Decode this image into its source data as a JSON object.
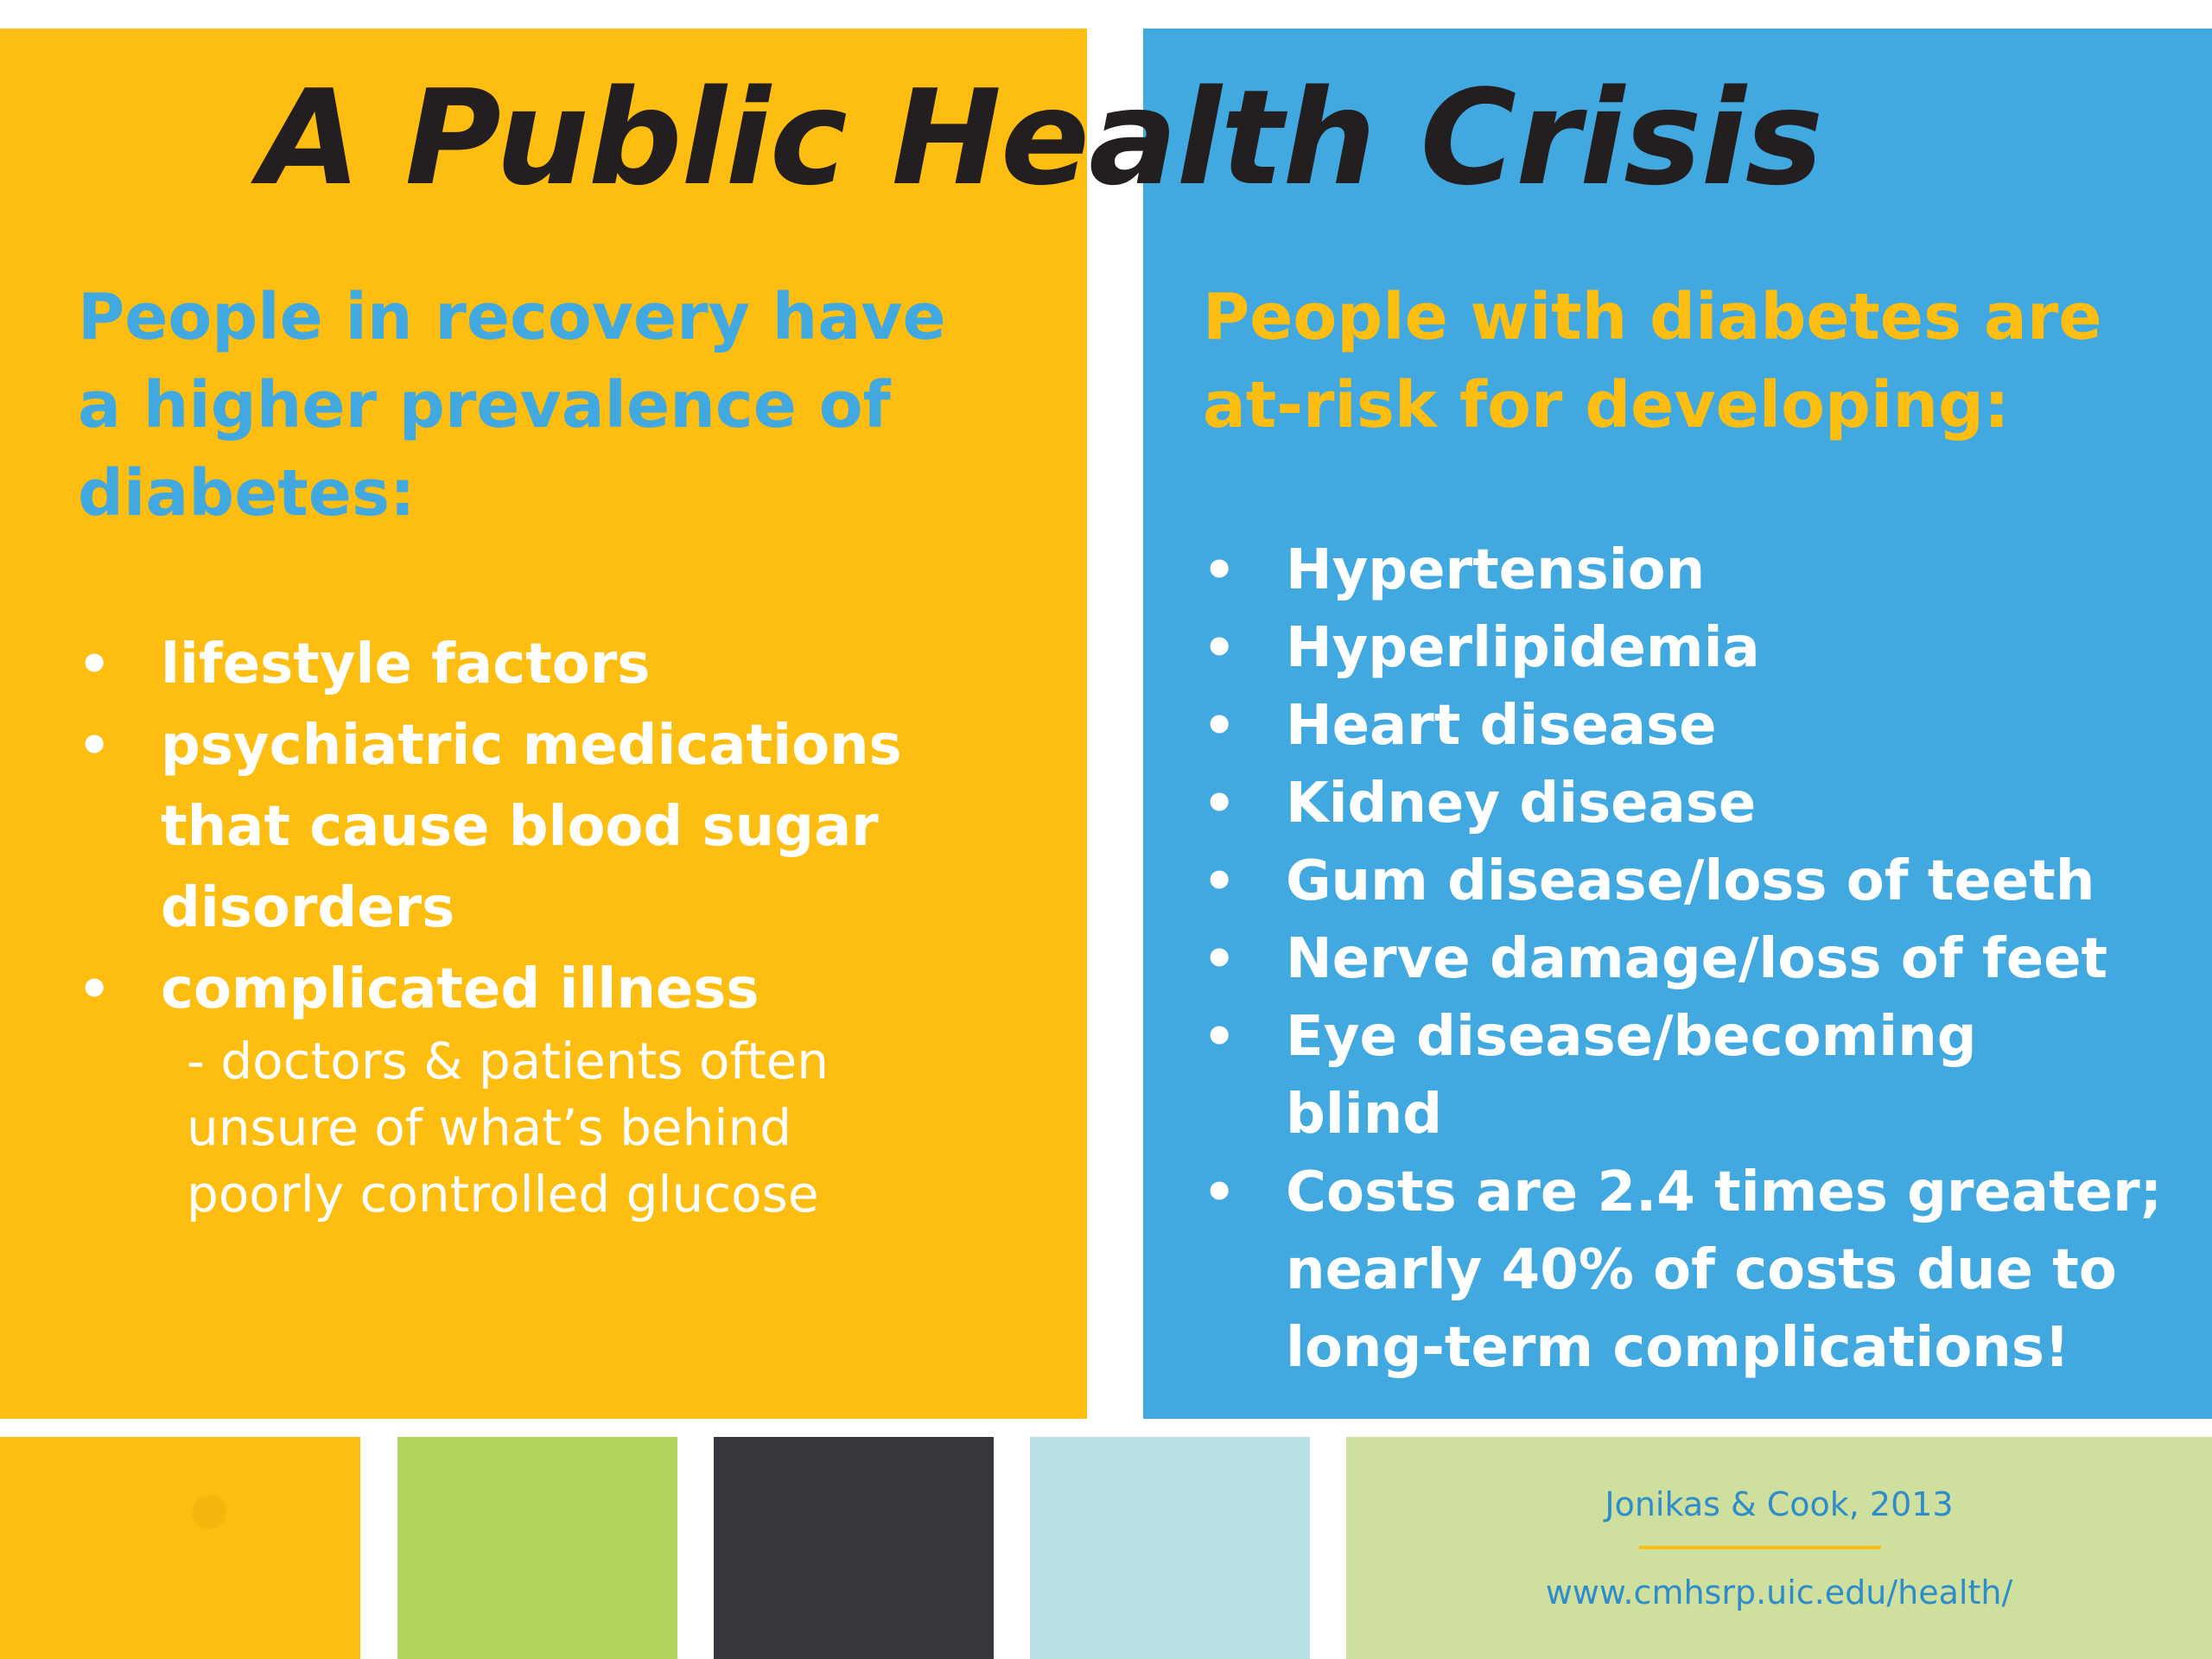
{
  "slide": {
    "title": "A Public Health Crisis",
    "left_panel": {
      "heading_lines": [
        "People in recovery have",
        "a higher prevalence of",
        "diabetes:"
      ],
      "bullets": [
        {
          "lines": [
            "lifestyle factors"
          ]
        },
        {
          "lines": [
            "psychiatric medications",
            "that cause blood sugar",
            "disorders"
          ]
        },
        {
          "lines": [
            "complicated illness"
          ]
        }
      ],
      "subnote_lines": [
        "- doctors & patients often",
        "unsure of what’s behind",
        "poorly controlled glucose"
      ]
    },
    "right_panel": {
      "heading_lines": [
        "People with diabetes are",
        "at-risk for developing:"
      ],
      "bullets": [
        {
          "lines": [
            "Hypertension"
          ]
        },
        {
          "lines": [
            "Hyperlipidemia"
          ]
        },
        {
          "lines": [
            "Heart disease"
          ]
        },
        {
          "lines": [
            "Kidney disease"
          ]
        },
        {
          "lines": [
            "Gum disease/loss of teeth"
          ]
        },
        {
          "lines": [
            "Nerve damage/loss of feet"
          ]
        },
        {
          "lines": [
            "Eye disease/becoming",
            "blind"
          ]
        },
        {
          "lines": [
            "Costs are 2.4 times greater;",
            "nearly 40% of costs due to",
            "long-term complications!"
          ]
        }
      ]
    },
    "bullet_glyph": "•",
    "citation": {
      "author": "Jonikas & Cook, 2013",
      "url": "www.cmhsrp.uic.edu/health/"
    },
    "colors": {
      "yellow": "#FDBE11",
      "blue": "#41A8E0",
      "green": "#B2D35D",
      "dark": "#36373D",
      "light_blue": "#B9E1E6",
      "light_green": "#CFE09E",
      "title": "#231F20"
    }
  }
}
